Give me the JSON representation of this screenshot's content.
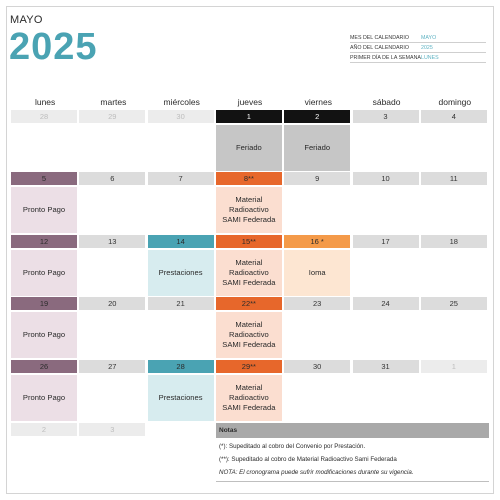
{
  "header": {
    "month": "MAYO",
    "year": "2025"
  },
  "settings": [
    {
      "label": "MES DEL CALENDARIO",
      "value": "MAYO"
    },
    {
      "label": "AÑO DEL CALENDARIO",
      "value": "2025"
    },
    {
      "label": "PRIMER DÍA DE LA SEMANA",
      "value": "LUNES"
    }
  ],
  "days": [
    "lunes",
    "martes",
    "miércoles",
    "jueves",
    "viernes",
    "sábado",
    "domingo"
  ],
  "weeks": [
    {
      "cells": [
        {
          "num": "28",
          "style": "dim"
        },
        {
          "num": "29",
          "style": "dim"
        },
        {
          "num": "30",
          "style": "dim"
        },
        {
          "num": "1",
          "style": "black",
          "body": [
            "Feriado"
          ],
          "bodyStyle": "gray"
        },
        {
          "num": "2",
          "style": "black",
          "body": [
            "Feriado"
          ],
          "bodyStyle": "gray"
        },
        {
          "num": "3"
        },
        {
          "num": "4"
        }
      ]
    },
    {
      "cells": [
        {
          "num": "5",
          "style": "mauve",
          "body": [
            "Pronto Pago"
          ],
          "bodyStyle": "mauve"
        },
        {
          "num": "6"
        },
        {
          "num": "7"
        },
        {
          "num": "8**",
          "style": "orange",
          "body": [
            "Material",
            "Radioactivo",
            "SAMI Federada"
          ],
          "bodyStyle": "orange"
        },
        {
          "num": "9"
        },
        {
          "num": "10"
        },
        {
          "num": "11"
        }
      ]
    },
    {
      "cells": [
        {
          "num": "12",
          "style": "mauve",
          "body": [
            "Pronto Pago"
          ],
          "bodyStyle": "mauve"
        },
        {
          "num": "13"
        },
        {
          "num": "14",
          "style": "teal",
          "body": [
            "Prestaciones"
          ],
          "bodyStyle": "teal"
        },
        {
          "num": "15**",
          "style": "orange",
          "body": [
            "Material",
            "Radioactivo",
            "SAMI Federada"
          ],
          "bodyStyle": "orange"
        },
        {
          "num": "16 *",
          "style": "lorange",
          "body": [
            "Ioma"
          ],
          "bodyStyle": "lorange"
        },
        {
          "num": "17"
        },
        {
          "num": "18"
        }
      ]
    },
    {
      "cells": [
        {
          "num": "19",
          "style": "mauve",
          "body": [
            "Pronto Pago"
          ],
          "bodyStyle": "mauve"
        },
        {
          "num": "20"
        },
        {
          "num": "21"
        },
        {
          "num": "22**",
          "style": "orange",
          "body": [
            "Material",
            "Radioactivo",
            "SAMI Federada"
          ],
          "bodyStyle": "orange"
        },
        {
          "num": "23"
        },
        {
          "num": "24"
        },
        {
          "num": "25"
        }
      ]
    },
    {
      "cells": [
        {
          "num": "26",
          "style": "mauve",
          "body": [
            "Pronto Pago"
          ],
          "bodyStyle": "mauve"
        },
        {
          "num": "27"
        },
        {
          "num": "28",
          "style": "teal",
          "body": [
            "Prestaciones"
          ],
          "bodyStyle": "teal"
        },
        {
          "num": "29**",
          "style": "orange",
          "body": [
            "Material",
            "Radioactivo",
            "SAMI Federada"
          ],
          "bodyStyle": "orange"
        },
        {
          "num": "30"
        },
        {
          "num": "31"
        },
        {
          "num": "1",
          "style": "dim"
        }
      ]
    },
    {
      "cells": [
        {
          "num": "2",
          "style": "dim"
        },
        {
          "num": "3",
          "style": "dim"
        }
      ]
    }
  ],
  "notes": {
    "title": "Notas",
    "lines": [
      "(*): Supeditado al cobro del Convenio por Prestación.",
      "(**): Supeditado al cobro de Material Radioactivo Sami Federada",
      "NOTA: El cronograma puede sufrir modificaciones durante su vigencia."
    ]
  }
}
